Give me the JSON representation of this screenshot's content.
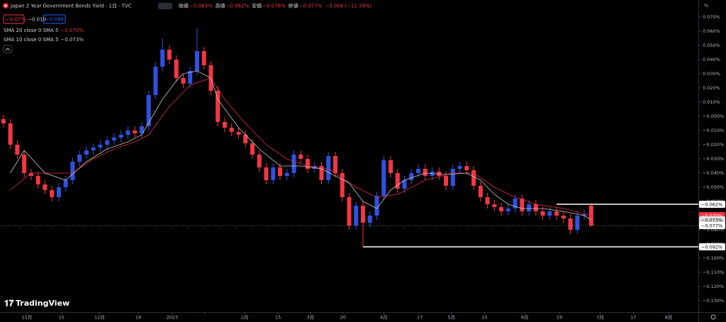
{
  "chart_data": {
    "type": "candlestick",
    "title": "Japan 2 Year Government Bonds Yield · 1日 · TVC",
    "ohlc_labels": [
      {
        "name": "始値",
        "value": -0.063,
        "label": "−0.063%"
      },
      {
        "name": "高値",
        "value": -0.062,
        "label": "−0.062%"
      },
      {
        "name": "安値",
        "value": -0.078,
        "label": "−0.078%"
      },
      {
        "name": "終値",
        "value": -0.077,
        "label": "−0.077%"
      }
    ],
    "change": "−0.008 (−11.59%)",
    "quote_boxes": [
      {
        "value": -0.07,
        "label": "−0.07%",
        "color": "#f23645"
      },
      {
        "value": -0.01,
        "label": "−0.010",
        "color": null
      },
      {
        "value": -0.086,
        "label": "−0.086",
        "color": "#2962ff"
      }
    ],
    "logo": "TradingView",
    "unit": "%",
    "up_color": "#3050e0",
    "down_color": "#f23645",
    "x": [
      0,
      1,
      2,
      3,
      4,
      5,
      6,
      7,
      8,
      9,
      10,
      11,
      12,
      13,
      14,
      15,
      16,
      17,
      18,
      19,
      20,
      21,
      22,
      23,
      24,
      25,
      26,
      27,
      28,
      29,
      30,
      31,
      32,
      33,
      34,
      35,
      36,
      37,
      38,
      39,
      40,
      41,
      42,
      43,
      44,
      45,
      46,
      47,
      48,
      49,
      50,
      51,
      52,
      53,
      54,
      55,
      56,
      57,
      58,
      59,
      60,
      61,
      62,
      63,
      64,
      65,
      66,
      67,
      68,
      69,
      70,
      71,
      72,
      73,
      74,
      75,
      76,
      77,
      78,
      79,
      80,
      81,
      82,
      83,
      84,
      85
    ],
    "open": [
      -0.002,
      -0.005,
      -0.02,
      -0.027,
      -0.04,
      -0.042,
      -0.048,
      -0.052,
      -0.057,
      -0.05,
      -0.045,
      -0.032,
      -0.027,
      -0.024,
      -0.022,
      -0.02,
      -0.017,
      -0.015,
      -0.013,
      -0.01,
      -0.012,
      -0.007,
      0.015,
      0.035,
      0.047,
      0.04,
      0.027,
      0.023,
      0.032,
      0.046,
      0.036,
      0.018,
      -0.004,
      -0.008,
      -0.011,
      -0.013,
      -0.019,
      -0.027,
      -0.036,
      -0.045,
      -0.036,
      -0.042,
      -0.04,
      -0.027,
      -0.03,
      -0.037,
      -0.035,
      -0.045,
      -0.028,
      -0.04,
      -0.057,
      -0.077,
      -0.063,
      -0.075,
      -0.07,
      -0.056,
      -0.031,
      -0.04,
      -0.051,
      -0.045,
      -0.04,
      -0.037,
      -0.042,
      -0.039,
      -0.042,
      -0.049,
      -0.037,
      -0.035,
      -0.038,
      -0.049,
      -0.057,
      -0.062,
      -0.064,
      -0.067,
      -0.065,
      -0.058,
      -0.067,
      -0.062,
      -0.067,
      -0.07,
      -0.067,
      -0.07,
      -0.072,
      -0.08,
      -0.07,
      -0.063
    ],
    "high": [
      0.001,
      -0.002,
      -0.017,
      -0.024,
      -0.037,
      -0.039,
      -0.045,
      -0.049,
      -0.047,
      -0.042,
      -0.029,
      -0.024,
      -0.021,
      -0.019,
      -0.017,
      -0.014,
      -0.012,
      -0.01,
      -0.007,
      -0.007,
      -0.004,
      0.018,
      0.038,
      0.055,
      0.05,
      0.043,
      0.03,
      0.035,
      0.062,
      0.049,
      0.039,
      0.021,
      -0.001,
      -0.005,
      -0.008,
      -0.01,
      -0.016,
      -0.024,
      -0.033,
      -0.033,
      -0.033,
      -0.037,
      -0.024,
      -0.024,
      -0.027,
      -0.032,
      -0.032,
      -0.025,
      -0.025,
      -0.037,
      -0.054,
      -0.06,
      -0.06,
      -0.067,
      -0.053,
      -0.028,
      -0.028,
      -0.037,
      -0.042,
      -0.037,
      -0.034,
      -0.034,
      -0.036,
      -0.036,
      -0.039,
      -0.034,
      -0.032,
      -0.032,
      -0.035,
      -0.046,
      -0.054,
      -0.059,
      -0.061,
      -0.062,
      -0.055,
      -0.055,
      -0.059,
      -0.059,
      -0.064,
      -0.064,
      -0.064,
      -0.067,
      -0.069,
      -0.067,
      -0.066,
      -0.062
    ],
    "low": [
      -0.008,
      -0.023,
      -0.03,
      -0.043,
      -0.045,
      -0.051,
      -0.055,
      -0.06,
      -0.06,
      -0.053,
      -0.048,
      -0.035,
      -0.03,
      -0.027,
      -0.025,
      -0.023,
      -0.02,
      -0.018,
      -0.016,
      -0.015,
      -0.015,
      -0.01,
      0.012,
      0.032,
      0.037,
      0.024,
      0.02,
      0.02,
      0.029,
      0.033,
      0.015,
      -0.007,
      -0.011,
      -0.014,
      -0.016,
      -0.022,
      -0.03,
      -0.039,
      -0.048,
      -0.048,
      -0.045,
      -0.045,
      -0.043,
      -0.033,
      -0.04,
      -0.04,
      -0.048,
      -0.048,
      -0.043,
      -0.06,
      -0.08,
      -0.08,
      -0.092,
      -0.078,
      -0.073,
      -0.059,
      -0.043,
      -0.054,
      -0.054,
      -0.048,
      -0.043,
      -0.045,
      -0.045,
      -0.045,
      -0.052,
      -0.052,
      -0.04,
      -0.041,
      -0.052,
      -0.06,
      -0.065,
      -0.067,
      -0.07,
      -0.07,
      -0.068,
      -0.07,
      -0.07,
      -0.07,
      -0.073,
      -0.073,
      -0.073,
      -0.075,
      -0.083,
      -0.083,
      -0.073,
      -0.078
    ],
    "close": [
      -0.005,
      -0.02,
      -0.027,
      -0.04,
      -0.042,
      -0.048,
      -0.052,
      -0.057,
      -0.05,
      -0.045,
      -0.032,
      -0.027,
      -0.024,
      -0.022,
      -0.02,
      -0.017,
      -0.015,
      -0.013,
      -0.01,
      -0.012,
      -0.007,
      0.015,
      0.035,
      0.047,
      0.04,
      0.027,
      0.023,
      0.032,
      0.046,
      0.036,
      0.018,
      -0.004,
      -0.008,
      -0.011,
      -0.013,
      -0.019,
      -0.027,
      -0.036,
      -0.045,
      -0.036,
      -0.042,
      -0.04,
      -0.027,
      -0.03,
      -0.037,
      -0.035,
      -0.045,
      -0.028,
      -0.04,
      -0.057,
      -0.077,
      -0.063,
      -0.075,
      -0.07,
      -0.056,
      -0.031,
      -0.04,
      -0.051,
      -0.045,
      -0.04,
      -0.037,
      -0.042,
      -0.039,
      -0.042,
      -0.049,
      -0.037,
      -0.035,
      -0.038,
      -0.049,
      -0.057,
      -0.062,
      -0.064,
      -0.067,
      -0.065,
      -0.058,
      -0.067,
      -0.062,
      -0.067,
      -0.07,
      -0.067,
      -0.07,
      -0.072,
      -0.08,
      -0.07,
      -0.069,
      -0.077
    ],
    "series": [
      {
        "name": "SMA 20 close 0 SMA 5",
        "color": "#e03040",
        "legend_value": {
          "value": -0.07,
          "label": "−0.070%"
        },
        "x": [
          1,
          4,
          7,
          10,
          13,
          16,
          19,
          21,
          24,
          27,
          30,
          32,
          35,
          38,
          41,
          44,
          47,
          51,
          54,
          57,
          61,
          65,
          68,
          71,
          74,
          77,
          81,
          85
        ],
        "values": [
          -0.052,
          -0.04,
          -0.04,
          -0.04,
          -0.03,
          -0.023,
          -0.018,
          -0.013,
          0.007,
          0.022,
          0.027,
          0.012,
          -0.005,
          -0.02,
          -0.03,
          -0.035,
          -0.037,
          -0.05,
          -0.057,
          -0.055,
          -0.045,
          -0.04,
          -0.04,
          -0.05,
          -0.057,
          -0.062,
          -0.065,
          -0.07
        ]
      },
      {
        "name": "SMA 10 close 0 SMA 5",
        "color": "#c8c8c8",
        "legend_value": {
          "value": -0.073,
          "label": "−0.073%"
        },
        "x": [
          1,
          3,
          6,
          9,
          12,
          15,
          18,
          20,
          23,
          25,
          26,
          28,
          30,
          31,
          34,
          37,
          40,
          43,
          46,
          50,
          52,
          54,
          56,
          58,
          61,
          64,
          67,
          69,
          71,
          73,
          75,
          78,
          81,
          84,
          85
        ],
        "values": [
          -0.04,
          -0.024,
          -0.04,
          -0.045,
          -0.032,
          -0.023,
          -0.018,
          -0.013,
          0.012,
          0.025,
          0.03,
          0.032,
          0.027,
          0.012,
          -0.008,
          -0.023,
          -0.035,
          -0.035,
          -0.037,
          -0.047,
          -0.06,
          -0.065,
          -0.052,
          -0.045,
          -0.04,
          -0.041,
          -0.04,
          -0.045,
          -0.055,
          -0.062,
          -0.065,
          -0.065,
          -0.067,
          -0.07,
          -0.073
        ]
      }
    ],
    "price_lines": [
      {
        "value": -0.062,
        "label": "−0.062%",
        "color": "#ffffff",
        "text_color": "#000000",
        "start": 80,
        "style": "solid"
      },
      {
        "value": -0.07,
        "label": "−0.070%",
        "color": "#f23645",
        "text_color": "#ffffff",
        "start": null,
        "style": "none"
      },
      {
        "value": -0.073,
        "label": "−0.073%",
        "color": "#e0e0e0",
        "text_color": "#000000",
        "start": null,
        "style": "none"
      },
      {
        "value": -0.077,
        "label": "−0.077%",
        "color": "#ffffff",
        "text_color": "#000000",
        "start": -0.5,
        "style": "dotted"
      },
      {
        "value": -0.092,
        "label": "−0.092%",
        "color": "#ffffff",
        "text_color": "#000000",
        "start": 52,
        "style": "solid"
      }
    ],
    "xlim": [
      -0.5,
      100.5
    ],
    "xticks": [
      {
        "value": 3.4,
        "label": "11月"
      },
      8.4,
      13.9,
      19.5,
      {
        "value": 24.4,
        "label": "2023"
      },
      29.1,
      {
        "value": 34.9,
        "label": "2月"
      },
      {
        "value": 39.7,
        "label": "15"
      },
      {
        "value": 44.4,
        "label": "3月"
      },
      {
        "value": 49.1,
        "label": "20"
      },
      {
        "value": 55,
        "label": "4月"
      },
      {
        "value": 60.2,
        "label": "17"
      },
      {
        "value": 64.8,
        "label": "5月"
      },
      {
        "value": 69.6,
        "label": "15"
      },
      {
        "value": 75.4,
        "label": "6月"
      },
      {
        "value": 80.4,
        "label": "19"
      },
      {
        "value": 86.3,
        "label": "7月"
      },
      {
        "value": 91.1,
        "label": "17"
      },
      {
        "value": 96.2,
        "label": "8月"
      }
    ],
    "xtick_labels": [
      "11月",
      "15",
      "12月",
      "19"
    ],
    "ylim": [
      -0.138,
      0.082
    ],
    "yticks": [
      {
        "value": 0.07,
        "label": "0.070%"
      },
      {
        "value": 0.06,
        "label": "0.060%"
      },
      {
        "value": 0.05,
        "label": "0.050%"
      },
      {
        "value": 0.04,
        "label": "0.040%"
      },
      {
        "value": 0.03,
        "label": "0.030%"
      },
      {
        "value": 0.02,
        "label": "0.020%"
      },
      {
        "value": 0.01,
        "label": "0.010%"
      },
      {
        "value": 0,
        "label": "−0.000%"
      },
      {
        "value": -0.01,
        "label": "−0.010%"
      },
      {
        "value": -0.02,
        "label": "−0.020%"
      },
      {
        "value": -0.03,
        "label": "−0.030%"
      },
      {
        "value": -0.04,
        "label": "−0.040%"
      },
      {
        "value": -0.05,
        "label": "−0.050%"
      },
      {
        "value": -0.06,
        "label": "−0.060%"
      },
      {
        "value": -0.07,
        "label": "−0.070%"
      },
      {
        "value": -0.08,
        "label": "−0.080%"
      },
      {
        "value": -0.09,
        "label": "−0.090%"
      },
      {
        "value": -0.1,
        "label": "−0.100%"
      },
      {
        "value": -0.11,
        "label": "−0.110%"
      },
      {
        "value": -0.12,
        "label": "−0.120%"
      },
      {
        "value": -0.13,
        "label": "−0.130%"
      }
    ],
    "grid": false
  }
}
